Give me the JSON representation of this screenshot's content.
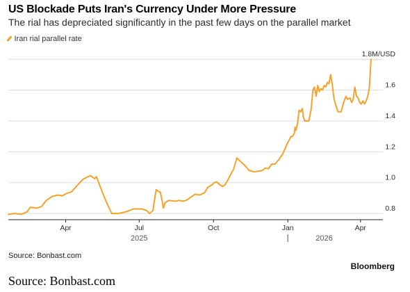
{
  "header": {
    "title": "US Blockade Puts Iran's Currency Under More Pressure",
    "subtitle": "The rial has depreciated significantly in the past few days on the parallel market"
  },
  "footer": {
    "source_small": "Source: Bonbast.com",
    "brand": "Bloomberg",
    "source_large": "Source: Bonbast.com"
  },
  "chart_data": {
    "type": "line",
    "x_type": "date",
    "xlim": [
      "2025-01-20",
      "2026-04-27"
    ],
    "ylim": [
      0.76,
      1.81
    ],
    "y_unit": "M/USD",
    "grid": true,
    "legend_position": "top-left",
    "yticks": [
      {
        "value": 0.8,
        "label": "0.8"
      },
      {
        "value": 1.0,
        "label": "1.0"
      },
      {
        "value": 1.2,
        "label": "1.2"
      },
      {
        "value": 1.4,
        "label": "1.4"
      },
      {
        "value": 1.6,
        "label": "1.6"
      },
      {
        "value": 1.8,
        "label": "1.8M/USD"
      }
    ],
    "xticks": [
      {
        "date": "2025-04-01",
        "label": "Apr"
      },
      {
        "date": "2025-07-01",
        "label": "Jul"
      },
      {
        "date": "2025-10-01",
        "label": "Oct"
      },
      {
        "date": "2026-01-01",
        "label": "Jan"
      },
      {
        "date": "2026-04-01",
        "label": "Apr"
      }
    ],
    "year_labels": [
      {
        "date": "2025-07-01",
        "label": "2025"
      },
      {
        "date": "2026-02-15",
        "label": "2026"
      }
    ],
    "series": [
      {
        "name": "Iran rial parallel rate",
        "color": "#f5a22c",
        "points": [
          [
            "2025-01-20",
            0.795
          ],
          [
            "2025-01-28",
            0.8
          ],
          [
            "2025-02-05",
            0.795
          ],
          [
            "2025-02-12",
            0.81
          ],
          [
            "2025-02-16",
            0.84
          ],
          [
            "2025-02-24",
            0.835
          ],
          [
            "2025-03-02",
            0.845
          ],
          [
            "2025-03-08",
            0.885
          ],
          [
            "2025-03-15",
            0.91
          ],
          [
            "2025-03-22",
            0.92
          ],
          [
            "2025-03-28",
            0.915
          ],
          [
            "2025-04-02",
            0.93
          ],
          [
            "2025-04-08",
            0.94
          ],
          [
            "2025-04-14",
            0.975
          ],
          [
            "2025-04-22",
            1.02
          ],
          [
            "2025-04-29",
            1.04
          ],
          [
            "2025-05-02",
            1.045
          ],
          [
            "2025-05-07",
            1.025
          ],
          [
            "2025-05-09",
            1.04
          ],
          [
            "2025-05-13",
            0.985
          ],
          [
            "2025-05-20",
            0.89
          ],
          [
            "2025-05-24",
            0.845
          ],
          [
            "2025-05-28",
            0.8
          ],
          [
            "2025-06-05",
            0.8
          ],
          [
            "2025-06-14",
            0.81
          ],
          [
            "2025-06-24",
            0.83
          ],
          [
            "2025-07-04",
            0.83
          ],
          [
            "2025-07-10",
            0.82
          ],
          [
            "2025-07-14",
            0.8
          ],
          [
            "2025-07-18",
            0.82
          ],
          [
            "2025-07-20",
            0.89
          ],
          [
            "2025-07-22",
            0.955
          ],
          [
            "2025-07-24",
            0.945
          ],
          [
            "2025-07-27",
            0.94
          ],
          [
            "2025-07-29",
            0.895
          ],
          [
            "2025-07-31",
            0.835
          ],
          [
            "2025-08-02",
            0.87
          ],
          [
            "2025-08-07",
            0.885
          ],
          [
            "2025-08-14",
            0.88
          ],
          [
            "2025-08-20",
            0.885
          ],
          [
            "2025-08-24",
            0.88
          ],
          [
            "2025-08-28",
            0.885
          ],
          [
            "2025-09-04",
            0.91
          ],
          [
            "2025-09-08",
            0.925
          ],
          [
            "2025-09-14",
            0.92
          ],
          [
            "2025-09-20",
            0.935
          ],
          [
            "2025-09-24",
            0.97
          ],
          [
            "2025-09-29",
            0.985
          ],
          [
            "2025-10-02",
            1.0
          ],
          [
            "2025-10-05",
            1.005
          ],
          [
            "2025-10-08",
            0.99
          ],
          [
            "2025-10-12",
            0.975
          ],
          [
            "2025-10-15",
            0.985
          ],
          [
            "2025-10-18",
            1.01
          ],
          [
            "2025-10-21",
            1.04
          ],
          [
            "2025-10-26",
            1.09
          ],
          [
            "2025-10-30",
            1.16
          ],
          [
            "2025-11-03",
            1.14
          ],
          [
            "2025-11-09",
            1.11
          ],
          [
            "2025-11-14",
            1.08
          ],
          [
            "2025-11-20",
            1.07
          ],
          [
            "2025-11-26",
            1.075
          ],
          [
            "2025-12-01",
            1.08
          ],
          [
            "2025-12-04",
            1.095
          ],
          [
            "2025-12-08",
            1.09
          ],
          [
            "2025-12-12",
            1.12
          ],
          [
            "2025-12-16",
            1.12
          ],
          [
            "2025-12-21",
            1.15
          ],
          [
            "2025-12-26",
            1.19
          ],
          [
            "2025-12-31",
            1.25
          ],
          [
            "2026-01-05",
            1.3
          ],
          [
            "2026-01-07",
            1.3
          ],
          [
            "2026-01-09",
            1.32
          ],
          [
            "2026-01-10",
            1.36
          ],
          [
            "2026-01-11",
            1.34
          ],
          [
            "2026-01-13",
            1.38
          ],
          [
            "2026-01-15",
            1.47
          ],
          [
            "2026-01-17",
            1.46
          ],
          [
            "2026-01-19",
            1.48
          ],
          [
            "2026-01-20",
            1.43
          ],
          [
            "2026-01-22",
            1.4
          ],
          [
            "2026-01-25",
            1.4
          ],
          [
            "2026-01-27",
            1.4
          ],
          [
            "2026-01-30",
            1.48
          ],
          [
            "2026-02-01",
            1.6
          ],
          [
            "2026-02-03",
            1.62
          ],
          [
            "2026-02-05",
            1.56
          ],
          [
            "2026-02-07",
            1.63
          ],
          [
            "2026-02-09",
            1.59
          ],
          [
            "2026-02-11",
            1.61
          ],
          [
            "2026-02-13",
            1.6
          ],
          [
            "2026-02-15",
            1.63
          ],
          [
            "2026-02-17",
            1.62
          ],
          [
            "2026-02-19",
            1.65
          ],
          [
            "2026-02-21",
            1.64
          ],
          [
            "2026-02-23",
            1.7
          ],
          [
            "2026-02-25",
            1.64
          ],
          [
            "2026-02-27",
            1.55
          ],
          [
            "2026-03-01",
            1.51
          ],
          [
            "2026-03-04",
            1.46
          ],
          [
            "2026-03-08",
            1.46
          ],
          [
            "2026-03-11",
            1.52
          ],
          [
            "2026-03-14",
            1.56
          ],
          [
            "2026-03-16",
            1.54
          ],
          [
            "2026-03-19",
            1.55
          ],
          [
            "2026-03-21",
            1.52
          ],
          [
            "2026-03-23",
            1.54
          ],
          [
            "2026-03-25",
            1.62
          ],
          [
            "2026-03-27",
            1.56
          ],
          [
            "2026-03-29",
            1.55
          ],
          [
            "2026-03-31",
            1.52
          ],
          [
            "2026-04-02",
            1.51
          ],
          [
            "2026-04-04",
            1.53
          ],
          [
            "2026-04-06",
            1.51
          ],
          [
            "2026-04-08",
            1.53
          ],
          [
            "2026-04-10",
            1.56
          ],
          [
            "2026-04-12",
            1.62
          ],
          [
            "2026-04-14",
            1.8
          ]
        ]
      }
    ]
  }
}
